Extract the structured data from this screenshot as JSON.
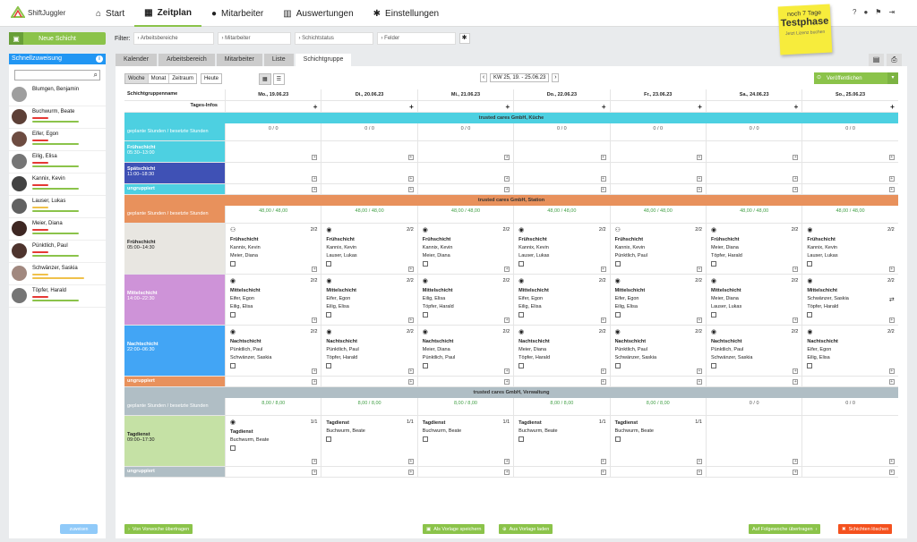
{
  "app": {
    "logo_text": "ShiftJuggler"
  },
  "nav": [
    {
      "label": "Start",
      "icon": "home-icon",
      "glyph": "⌂",
      "active": false
    },
    {
      "label": "Zeitplan",
      "icon": "calendar-icon",
      "glyph": "▦",
      "active": true
    },
    {
      "label": "Mitarbeiter",
      "icon": "user-icon",
      "glyph": "●",
      "active": false
    },
    {
      "label": "Auswertungen",
      "icon": "chart-icon",
      "glyph": "▥",
      "active": false
    },
    {
      "label": "Einstellungen",
      "icon": "gear-icon",
      "glyph": "✱",
      "active": false
    }
  ],
  "sticky": {
    "line1": "noch 7 Tage",
    "big": "Testphase",
    "small": "Jetzt Lizenz buchen"
  },
  "left": {
    "new_shift": "Neue Schicht",
    "panel_title": "Schnellzuweisung",
    "search_placeholder": "",
    "assign_button": "zuweisen",
    "employees": [
      {
        "name": "Blumgen, Benjamin",
        "avatar_color": "#9e9e9e",
        "bar1": "",
        "bar2": ""
      },
      {
        "name": "Buchwurm, Beate",
        "avatar_color": "#5d4037",
        "bar1": "#e53935",
        "bar2": "#8bc34a"
      },
      {
        "name": "Eifer, Egon",
        "avatar_color": "#6d4c41",
        "bar1": "#e53935",
        "bar2": "#8bc34a"
      },
      {
        "name": "Eilig, Elisa",
        "avatar_color": "#757575",
        "bar1": "#e53935",
        "bar2": "#8bc34a"
      },
      {
        "name": "Kannix, Kevin",
        "avatar_color": "#424242",
        "bar1": "#e53935",
        "bar2": "#8bc34a"
      },
      {
        "name": "Lauser, Lukas",
        "avatar_color": "#616161",
        "bar1": "#f0c14b",
        "bar2": "#8bc34a"
      },
      {
        "name": "Meier, Diana",
        "avatar_color": "#3e2723",
        "bar1": "#e53935",
        "bar2": "#8bc34a"
      },
      {
        "name": "Pünktlich, Paul",
        "avatar_color": "#4e342e",
        "bar1": "#e53935",
        "bar2": "#8bc34a"
      },
      {
        "name": "Schwänzer, Saskia",
        "avatar_color": "#a1887f",
        "bar1": "#f0c14b",
        "bar2": "#f0c14b"
      },
      {
        "name": "Töpfer, Harald",
        "avatar_color": "#757575",
        "bar1": "#e53935",
        "bar2": "#8bc34a"
      }
    ]
  },
  "filter": {
    "label": "Filter:",
    "fields": [
      "Arbeitsbereiche",
      "Mitarbeiter",
      "Schichtstatus",
      "Felder"
    ]
  },
  "tabs": [
    "Kalender",
    "Arbeitsbereich",
    "Mitarbeiter",
    "Liste",
    "Schichtgruppe"
  ],
  "view": {
    "modes": [
      "Woche",
      "Monat",
      "Zeitraum"
    ],
    "today": "Heute",
    "week_label": "KW 25, 19. - 25.06.23",
    "publish": "Veröffentlichen"
  },
  "grid": {
    "name_header": "Schichtgruppenname",
    "days": [
      "Mo., 19.06.23",
      "Di., 20.06.23",
      "Mi., 21.06.23",
      "Do., 22.06.23",
      "Fr., 23.06.23",
      "Sa., 24.06.23",
      "So., 25.06.23"
    ],
    "day_info_label": "Tages-Infos",
    "sections": [
      {
        "title": "trusted cares GmbH, Küche",
        "color": "#4dd0e1",
        "stat_label": "geplante Stunden / besetzte Stunden",
        "stat_color": "#4dd0e1",
        "stats": [
          "0 / 0",
          "0 / 0",
          "0 / 0",
          "0 / 0",
          "0 / 0",
          "0 / 0",
          "0 / 0"
        ],
        "stat_green": false,
        "groups": [
          {
            "name": "Frühschicht",
            "time": "05:30–13:00",
            "color": "#4dd0e1",
            "cards": []
          },
          {
            "name": "Spätschicht",
            "time": "11:00–18:30",
            "color": "#3f51b5",
            "cards": []
          }
        ],
        "ungrouped": "ungruppiert",
        "ungrouped_color": "#4dd0e1"
      },
      {
        "title": "trusted cares GmbH, Station",
        "color": "#e8915c",
        "stat_label": "geplante Stunden / besetzte Stunden",
        "stat_color": "#e8915c",
        "stats": [
          "48,00 / 48,00",
          "48,00 / 48,00",
          "48,00 / 48,00",
          "48,00 / 48,00",
          "48,00 / 48,00",
          "48,00 / 48,00",
          "48,00 / 48,00"
        ],
        "stat_green": true,
        "groups": [
          {
            "name": "Frühschicht",
            "time": "05:00–14:30",
            "color": "#e8e6e1",
            "dark_text": true,
            "cards": [
              {
                "icon": "people",
                "count": "2/2",
                "title": "Frühschicht",
                "names": [
                  "Kannix, Kevin",
                  "Meier, Diana"
                ]
              },
              {
                "icon": "eye",
                "count": "2/2",
                "title": "Frühschicht",
                "names": [
                  "Kannix, Kevin",
                  "Lauser, Lukas"
                ]
              },
              {
                "icon": "eye",
                "count": "2/2",
                "title": "Frühschicht",
                "names": [
                  "Kannix, Kevin",
                  "Meier, Diana"
                ]
              },
              {
                "icon": "eye",
                "count": "2/2",
                "title": "Frühschicht",
                "names": [
                  "Kannix, Kevin",
                  "Lauser, Lukas"
                ]
              },
              {
                "icon": "people",
                "count": "2/2",
                "title": "Frühschicht",
                "names": [
                  "Kannix, Kevin",
                  "Pünktlich, Paul"
                ]
              },
              {
                "icon": "eye",
                "count": "2/2",
                "title": "Frühschicht",
                "names": [
                  "Meier, Diana",
                  "Töpfer, Harald"
                ]
              },
              {
                "icon": "eye",
                "count": "2/2",
                "title": "Frühschicht",
                "names": [
                  "Kannix, Kevin",
                  "Lauser, Lukas"
                ]
              }
            ]
          },
          {
            "name": "Mittelschicht",
            "time": "14:00–22:30",
            "color": "#ce93d8",
            "cards": [
              {
                "icon": "eye",
                "count": "2/2",
                "title": "Mittelschicht",
                "names": [
                  "Eifer, Egon",
                  "Eilig, Elisa"
                ]
              },
              {
                "icon": "eye",
                "count": "2/2",
                "title": "Mittelschicht",
                "names": [
                  "Eifer, Egon",
                  "Eilig, Elisa"
                ]
              },
              {
                "icon": "eye",
                "count": "2/2",
                "title": "Mittelschicht",
                "names": [
                  "Eilig, Elisa",
                  "Töpfer, Harald"
                ]
              },
              {
                "icon": "eye",
                "count": "2/2",
                "title": "Mittelschicht",
                "names": [
                  "Eifer, Egon",
                  "Eilig, Elisa"
                ]
              },
              {
                "icon": "eye",
                "count": "2/2",
                "title": "Mittelschicht",
                "names": [
                  "Eifer, Egon",
                  "Eilig, Elisa"
                ]
              },
              {
                "icon": "eye",
                "count": "2/2",
                "title": "Mittelschicht",
                "names": [
                  "Meier, Diana",
                  "Lauser, Lukas"
                ]
              },
              {
                "icon": "eye",
                "count": "2/2",
                "title": "Mittelschicht",
                "names": [
                  "Schwänzer, Saskia",
                  "Töpfer, Harald"
                ],
                "swap": true
              }
            ]
          },
          {
            "name": "Nachtschicht",
            "time": "22:00–06:30",
            "color": "#42a5f5",
            "cards": [
              {
                "icon": "eye",
                "count": "2/2",
                "title": "Nachtschicht",
                "names": [
                  "Pünktlich, Paul",
                  "Schwänzer, Saskia"
                ]
              },
              {
                "icon": "eye",
                "count": "2/2",
                "title": "Nachtschicht",
                "names": [
                  "Pünktlich, Paul",
                  "Töpfer, Harald"
                ]
              },
              {
                "icon": "eye",
                "count": "2/2",
                "title": "Nachtschicht",
                "names": [
                  "Meier, Diana",
                  "Pünktlich, Paul"
                ]
              },
              {
                "icon": "eye",
                "count": "2/2",
                "title": "Nachtschicht",
                "names": [
                  "Meier, Diana",
                  "Töpfer, Harald"
                ]
              },
              {
                "icon": "eye",
                "count": "2/2",
                "title": "Nachtschicht",
                "names": [
                  "Pünktlich, Paul",
                  "Schwänzer, Saskia"
                ]
              },
              {
                "icon": "eye",
                "count": "2/2",
                "title": "Nachtschicht",
                "names": [
                  "Pünktlich, Paul",
                  "Schwänzer, Saskia"
                ]
              },
              {
                "icon": "eye",
                "count": "2/2",
                "title": "Nachtschicht",
                "names": [
                  "Eifer, Egon",
                  "Eilig, Elisa"
                ]
              }
            ]
          }
        ],
        "ungrouped": "ungruppiert",
        "ungrouped_color": "#e8915c"
      },
      {
        "title": "trusted cares GmbH, Verwaltung",
        "color": "#b0bec5",
        "stat_label": "geplante Stunden / besetzte Stunden",
        "stat_color": "#b0bec5",
        "stats": [
          "8,00 / 8,00",
          "8,00 / 8,00",
          "8,00 / 8,00",
          "8,00 / 8,00",
          "8,00 / 8,00",
          "0 / 0",
          "0 / 0"
        ],
        "stat_green": true,
        "groups": [
          {
            "name": "Tagdienst",
            "time": "09:00–17:30",
            "color": "#c5e1a5",
            "dark_text": true,
            "cards": [
              {
                "icon": "eye",
                "count": "1/1",
                "title": "Tagdienst",
                "names": [
                  "Buchwurm, Beate"
                ]
              },
              {
                "icon": "",
                "count": "1/1",
                "title": "Tagdienst",
                "names": [
                  "Buchwurm, Beate"
                ]
              },
              {
                "icon": "",
                "count": "1/1",
                "title": "Tagdienst",
                "names": [
                  "Buchwurm, Beate"
                ]
              },
              {
                "icon": "",
                "count": "1/1",
                "title": "Tagdienst",
                "names": [
                  "Buchwurm, Beate"
                ]
              },
              {
                "icon": "",
                "count": "1/1",
                "title": "Tagdienst",
                "names": [
                  "Buchwurm, Beate"
                ]
              }
            ]
          }
        ],
        "ungrouped": "ungruppiert",
        "ungrouped_color": "#b0bec5"
      }
    ]
  },
  "bottom": {
    "prev_week": "Von Vorwoche übertragen",
    "save_template": "Als Vorlage speichern",
    "load_template": "Aus Vorlage laden",
    "next_week": "Auf Folgewoche übertragen",
    "delete": "Schichten löschen"
  }
}
